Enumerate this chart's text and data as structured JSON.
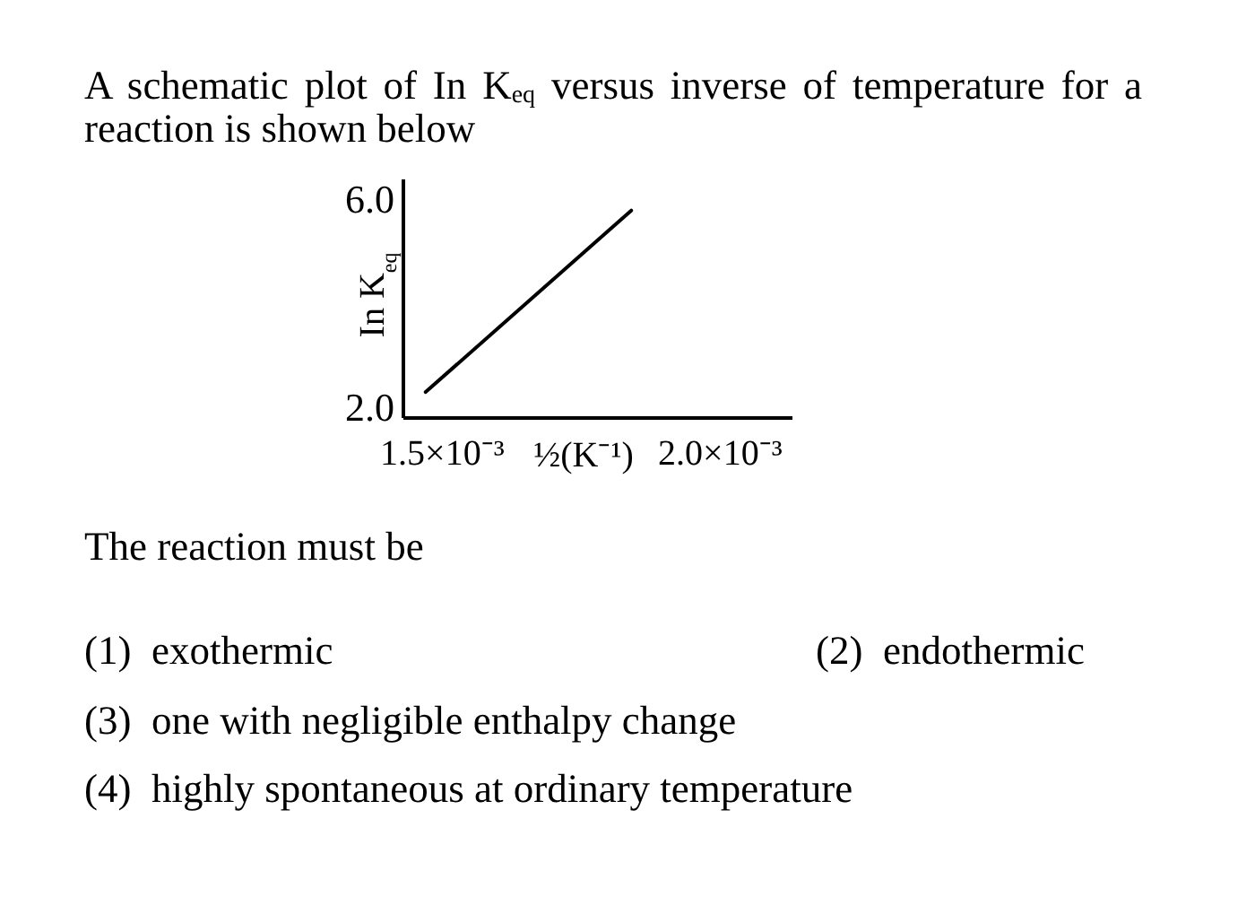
{
  "chart_data": {
    "type": "line",
    "title": "A schematic plot of In K$_{eq}$ versus inverse of temperature for a reaction is shown below",
    "xlabel": "½(K⁻¹)",
    "ylabel": "In K$_{eq}$",
    "x": [
      0.00147,
      0.00184
    ],
    "values": [
      2.3,
      5.8
    ],
    "color": "#000000",
    "line_style": "solid",
    "xlim": [
      0.00143,
      0.00213
    ],
    "ylim": [
      1.8,
      6.4
    ],
    "xticks": [
      {
        "value": 0.0015,
        "label": "1.5×10⁻³"
      },
      {
        "value": 0.002,
        "label": "2.0×10⁻³"
      }
    ],
    "yticks": [
      {
        "value": 2,
        "label": "2.0"
      },
      {
        "value": 6,
        "label": "6.0"
      }
    ],
    "annotations": [
      "The reaction must be",
      "(1)  exothermic",
      "(2)  endothermic",
      "(3)  one with negligible enthalpy change",
      "(4)  highly spontaneous at ordinary temperature"
    ]
  }
}
